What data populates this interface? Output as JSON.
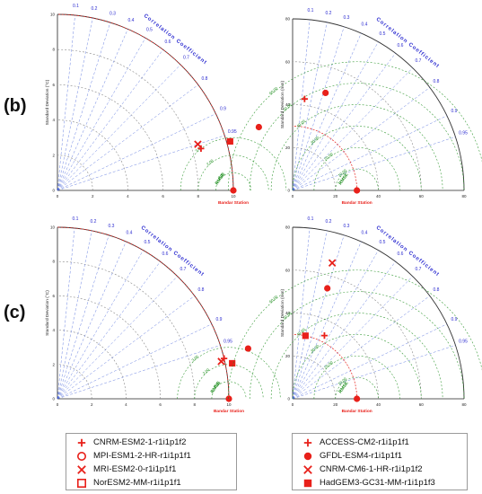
{
  "panel_labels": [
    "(b)",
    "(c)"
  ],
  "legend_left": [
    {
      "marker": "plus",
      "label": "CNRM-ESM2-1-r1i1p1f2"
    },
    {
      "marker": "circle-open",
      "label": "MPI-ESM1-2-HR-r1i1p1f1"
    },
    {
      "marker": "x",
      "label": "MRI-ESM2-0-r1i1p1f1"
    },
    {
      "marker": "square-open",
      "label": "NorESM2-MM-r1i1p1f1"
    }
  ],
  "legend_right": [
    {
      "marker": "plus",
      "label": "ACCESS-CM2-r1i1p1f1"
    },
    {
      "marker": "circle-filled",
      "label": "GFDL-ESM4-r1i1p1f1"
    },
    {
      "marker": "x",
      "label": "CNRM-CM6-1-HR-r1i1p1f2"
    },
    {
      "marker": "square-filled",
      "label": "HadGEM3-GC31-MM-r1i1p1f3"
    }
  ],
  "colors": {
    "model": "#e8201a",
    "corr_text": "#2a2ad0",
    "rmse": "#1a8c1a",
    "arc": "#444444"
  },
  "chart_data": [
    {
      "type": "scatter",
      "subtype": "taylor-diagram",
      "row": "(b)",
      "column": "left",
      "ylabel": "Standard Deviation (°C)",
      "xlabel": "Bandar Station",
      "correlation_label": "Correlation Coefficient",
      "correlation_ticks": [
        "0.1",
        "0.2",
        "0.3",
        "0.4",
        "0.5",
        "0.6",
        "0.7",
        "0.8",
        "0.9",
        "0.95"
      ],
      "std_range": [
        0,
        10
      ],
      "std_ticks": [
        "0",
        "2",
        "4",
        "6",
        "8",
        "10"
      ],
      "rmse_label": "RMSE",
      "rmse_ticks": [
        "1.00",
        "2.00",
        "3.00"
      ],
      "reference_std": 10,
      "points": [
        {
          "marker": "x",
          "correlation": 0.95,
          "std": 8.4
        },
        {
          "marker": "plus",
          "correlation": 0.96,
          "std": 8.5
        },
        {
          "marker": "square-filled",
          "correlation": 0.962,
          "std": 10.2
        },
        {
          "marker": "circle-filled",
          "correlation": 0.954,
          "std": 12.0
        },
        {
          "marker": "circle-filled",
          "correlation": 1.0,
          "std": 10.0
        }
      ]
    },
    {
      "type": "scatter",
      "subtype": "taylor-diagram",
      "row": "(b)",
      "column": "right",
      "ylabel": "Standard Deviation (mm)",
      "xlabel": "Bandar Station",
      "correlation_label": "Correlation Coefficient",
      "correlation_ticks": [
        "0.1",
        "0.2",
        "0.3",
        "0.4",
        "0.5",
        "0.6",
        "0.7",
        "0.8",
        "0.9",
        "0.95"
      ],
      "std_range": [
        0,
        80
      ],
      "std_ticks": [
        "0",
        "20",
        "40",
        "60",
        "80"
      ],
      "rmse_label": "RMSE",
      "rmse_ticks": [
        "10.00",
        "20.00",
        "30.00",
        "40.00",
        "50.00",
        "60.00"
      ],
      "reference_std": 30,
      "points": [
        {
          "marker": "plus",
          "correlation": 0.13,
          "std": 43
        },
        {
          "marker": "circle-filled",
          "correlation": 0.32,
          "std": 48
        },
        {
          "marker": "circle-filled",
          "correlation": 1.0,
          "std": 30
        }
      ]
    },
    {
      "type": "scatter",
      "subtype": "taylor-diagram",
      "row": "(c)",
      "column": "left",
      "ylabel": "Standard Deviation (°C)",
      "xlabel": "Bandar Station",
      "correlation_label": "Correlation Coefficient",
      "correlation_ticks": [
        "0.1",
        "0.2",
        "0.3",
        "0.4",
        "0.5",
        "0.6",
        "0.7",
        "0.8",
        "0.9",
        "0.95"
      ],
      "std_range": [
        0,
        10
      ],
      "std_ticks": [
        "0",
        "2",
        "4",
        "6",
        "8",
        "10"
      ],
      "rmse_label": "RMSE",
      "rmse_ticks": [
        "1.00",
        "2.00",
        "3.00"
      ],
      "reference_std": 10,
      "points": [
        {
          "marker": "x",
          "correlation": 0.975,
          "std": 9.8
        },
        {
          "marker": "plus",
          "correlation": 0.972,
          "std": 10.0
        },
        {
          "marker": "square-filled",
          "correlation": 0.98,
          "std": 10.4
        },
        {
          "marker": "circle-filled",
          "correlation": 0.967,
          "std": 11.5
        },
        {
          "marker": "circle-filled",
          "correlation": 1.0,
          "std": 10.0
        }
      ]
    },
    {
      "type": "scatter",
      "subtype": "taylor-diagram",
      "row": "(c)",
      "column": "right",
      "ylabel": "Standard Deviation (mm)",
      "xlabel": "Bandar Station",
      "correlation_label": "Correlation Coefficient",
      "correlation_ticks": [
        "0.1",
        "0.2",
        "0.3",
        "0.4",
        "0.5",
        "0.6",
        "0.7",
        "0.8",
        "0.9",
        "0.95"
      ],
      "std_range": [
        0,
        80
      ],
      "std_ticks": [
        "0",
        "20",
        "40",
        "60",
        "80"
      ],
      "rmse_label": "RMSE",
      "rmse_ticks": [
        "10.00",
        "20.00",
        "30.00",
        "40.00",
        "50.00",
        "60.00"
      ],
      "reference_std": 30,
      "points": [
        {
          "marker": "x",
          "correlation": 0.28,
          "std": 66
        },
        {
          "marker": "circle-filled",
          "correlation": 0.3,
          "std": 54
        },
        {
          "marker": "plus",
          "correlation": 0.45,
          "std": 33
        },
        {
          "marker": "square-filled",
          "correlation": 0.2,
          "std": 30
        },
        {
          "marker": "circle-filled",
          "correlation": 1.0,
          "std": 30
        }
      ]
    }
  ]
}
